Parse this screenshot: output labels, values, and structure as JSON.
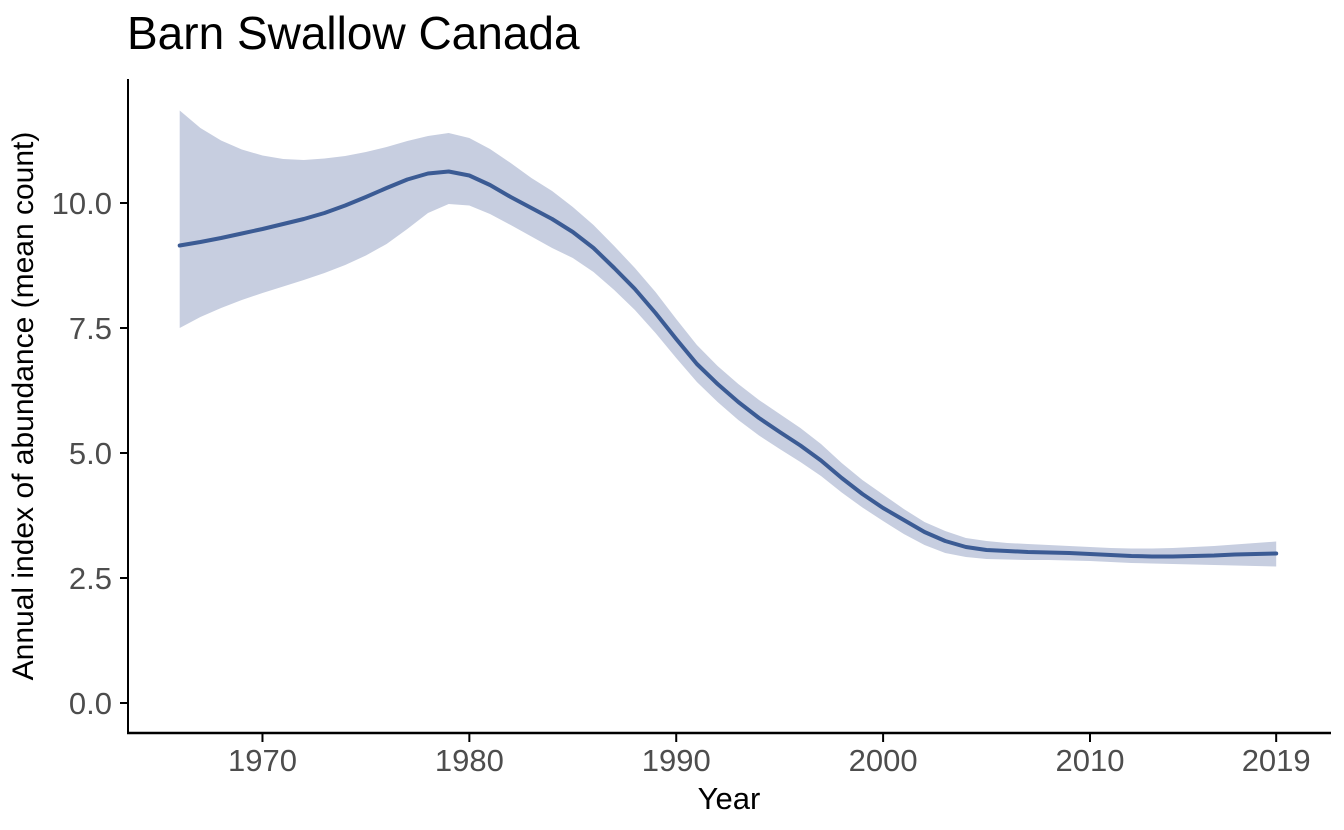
{
  "chart_data": {
    "type": "line",
    "title": "Barn Swallow Canada",
    "xlabel": "Year",
    "ylabel": "Annual index of abundance (mean count)",
    "legend": "none",
    "grid": false,
    "xlim": [
      1963.5,
      2021.65
    ],
    "ylim": [
      -0.6,
      12.48
    ],
    "x_ticks": {
      "values": [
        1970,
        1980,
        1990,
        2000,
        2010,
        2019
      ],
      "labels": [
        "1970",
        "1980",
        "1990",
        "2000",
        "2010",
        "2019"
      ]
    },
    "y_ticks": {
      "values": [
        0,
        2.5,
        5,
        7.5,
        10
      ],
      "labels": [
        "0.0",
        "2.5",
        "5.0",
        "7.5",
        "10.0"
      ]
    },
    "x": [
      1966,
      1967,
      1968,
      1969,
      1970,
      1971,
      1972,
      1973,
      1974,
      1975,
      1976,
      1977,
      1978,
      1979,
      1980,
      1981,
      1982,
      1983,
      1984,
      1985,
      1986,
      1987,
      1988,
      1989,
      1990,
      1991,
      1992,
      1993,
      1994,
      1995,
      1996,
      1997,
      1998,
      1999,
      2000,
      2001,
      2002,
      2003,
      2004,
      2005,
      2006,
      2007,
      2008,
      2009,
      2010,
      2011,
      2012,
      2013,
      2014,
      2015,
      2016,
      2017,
      2018,
      2019
    ],
    "series": [
      {
        "name": "Annual index of abundance (mean count)",
        "values": [
          9.15,
          9.22,
          9.3,
          9.39,
          9.48,
          9.58,
          9.68,
          9.8,
          9.95,
          10.12,
          10.3,
          10.47,
          10.59,
          10.63,
          10.55,
          10.36,
          10.12,
          9.9,
          9.68,
          9.42,
          9.1,
          8.7,
          8.28,
          7.8,
          7.28,
          6.78,
          6.38,
          6.02,
          5.7,
          5.42,
          5.15,
          4.85,
          4.5,
          4.18,
          3.9,
          3.66,
          3.42,
          3.24,
          3.12,
          3.06,
          3.04,
          3.02,
          3.01,
          3.0,
          2.98,
          2.96,
          2.94,
          2.93,
          2.93,
          2.94,
          2.95,
          2.97,
          2.98,
          2.99
        ]
      },
      {
        "name": "Lower credible interval",
        "values": [
          7.5,
          7.72,
          7.9,
          8.06,
          8.2,
          8.33,
          8.46,
          8.6,
          8.76,
          8.95,
          9.18,
          9.48,
          9.8,
          9.98,
          9.95,
          9.78,
          9.56,
          9.33,
          9.1,
          8.9,
          8.62,
          8.26,
          7.86,
          7.4,
          6.9,
          6.42,
          6.02,
          5.66,
          5.35,
          5.08,
          4.82,
          4.54,
          4.21,
          3.91,
          3.64,
          3.38,
          3.16,
          3.0,
          2.92,
          2.88,
          2.87,
          2.86,
          2.86,
          2.85,
          2.84,
          2.82,
          2.8,
          2.79,
          2.78,
          2.77,
          2.76,
          2.75,
          2.74,
          2.73
        ]
      },
      {
        "name": "Upper credible interval",
        "values": [
          11.85,
          11.5,
          11.25,
          11.07,
          10.95,
          10.88,
          10.86,
          10.89,
          10.94,
          11.02,
          11.12,
          11.24,
          11.34,
          11.4,
          11.3,
          11.08,
          10.8,
          10.5,
          10.24,
          9.92,
          9.56,
          9.14,
          8.7,
          8.22,
          7.68,
          7.16,
          6.74,
          6.38,
          6.06,
          5.78,
          5.5,
          5.18,
          4.8,
          4.46,
          4.17,
          3.88,
          3.62,
          3.44,
          3.3,
          3.24,
          3.2,
          3.18,
          3.16,
          3.14,
          3.12,
          3.1,
          3.09,
          3.09,
          3.1,
          3.12,
          3.14,
          3.17,
          3.2,
          3.23
        ]
      }
    ],
    "band": {
      "lower": "Lower credible interval",
      "upper": "Upper credible interval"
    },
    "colors": {
      "line": "#3B5B94",
      "band": "#C7CEE0",
      "axis": "#000000",
      "tick_labels": "#4D4D4D",
      "title": "#000000"
    }
  }
}
